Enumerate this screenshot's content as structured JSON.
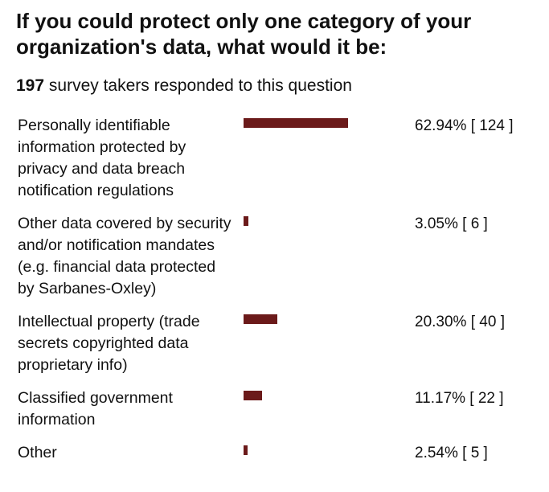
{
  "chart_data": {
    "type": "bar",
    "orientation": "horizontal",
    "title": "If you could protect only one category of your organization's data, what would it be:",
    "respondents": 197,
    "subtitle": "survey takers responded to this question",
    "categories": [
      "Personally identifiable information protected by privacy and data breach notification regulations",
      "Other data covered by security and/or notification mandates (e.g. financial data protected by Sarbanes-Oxley)",
      "Intellectual property (trade secrets copyrighted data proprietary info)",
      "Classified government information",
      "Other"
    ],
    "values": [
      62.94,
      3.05,
      20.3,
      11.17,
      2.54
    ],
    "value_labels": [
      "62.94% [ 124 ]",
      "3.05% [ 6 ]",
      "20.30% [ 40 ]",
      "11.17% [ 22 ]",
      "2.54% [ 5 ]"
    ],
    "color": "#6b1a1a",
    "xlim": [
      0,
      100
    ]
  }
}
